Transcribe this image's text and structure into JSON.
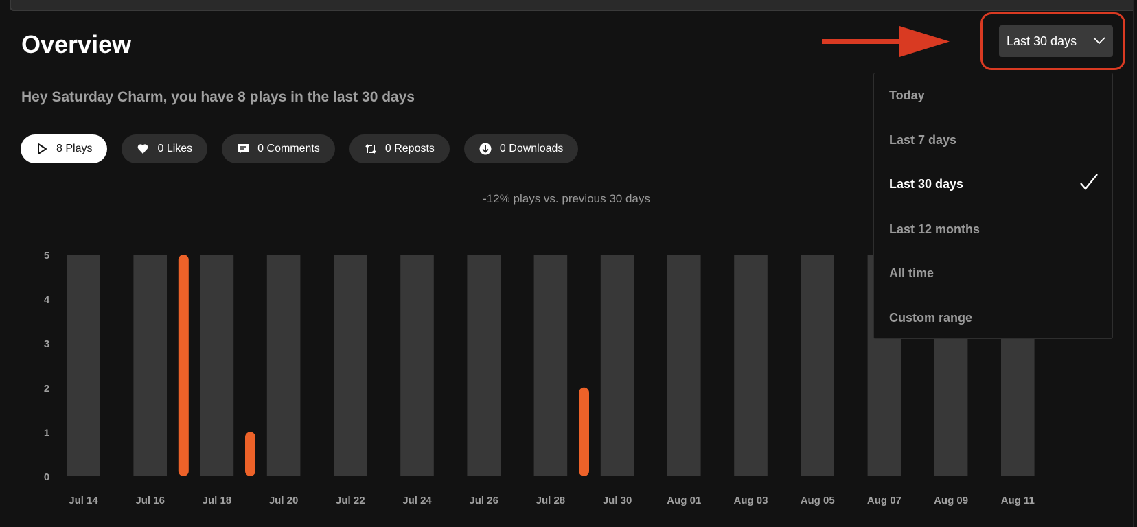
{
  "header": {
    "title": "Overview",
    "greeting": "Hey Saturday Charm, you have 8 plays in the last 30 days"
  },
  "stats": [
    {
      "icon": "play-icon",
      "label": "8 Plays",
      "active": true
    },
    {
      "icon": "heart-icon",
      "label": "0 Likes"
    },
    {
      "icon": "comment-icon",
      "label": "0 Comments"
    },
    {
      "icon": "repost-icon",
      "label": "0 Reposts"
    },
    {
      "icon": "download-icon",
      "label": "0 Downloads"
    }
  ],
  "comparison": "-12% plays vs. previous 30 days",
  "range_dropdown": {
    "selected": "Last 30 days",
    "options": [
      "Today",
      "Last 7 days",
      "Last 30 days",
      "Last 12 months",
      "All time",
      "Custom range"
    ],
    "selected_index": 2
  },
  "colors": {
    "accent": "#ed6229",
    "annotation": "#d93a22",
    "bar_bg": "#383838"
  },
  "chart_data": {
    "type": "bar",
    "categories": [
      "Jul 14",
      "Jul 15",
      "Jul 16",
      "Jul 17",
      "Jul 18",
      "Jul 19",
      "Jul 20",
      "Jul 21",
      "Jul 22",
      "Jul 23",
      "Jul 24",
      "Jul 25",
      "Jul 26",
      "Jul 27",
      "Jul 28",
      "Jul 29",
      "Jul 30",
      "Jul 31",
      "Aug 01",
      "Aug 02",
      "Aug 03",
      "Aug 04",
      "Aug 05",
      "Aug 06",
      "Aug 07",
      "Aug 08",
      "Aug 09",
      "Aug 10",
      "Aug 11"
    ],
    "values": [
      0,
      0,
      0,
      5,
      0,
      1,
      0,
      0,
      0,
      0,
      0,
      0,
      0,
      0,
      0,
      2,
      0,
      0,
      0,
      0,
      0,
      0,
      0,
      0,
      0,
      0,
      0,
      0,
      0
    ],
    "tick_labels": [
      "Jul 14",
      "Jul 16",
      "Jul 18",
      "Jul 20",
      "Jul 22",
      "Jul 24",
      "Jul 26",
      "Jul 28",
      "Jul 30",
      "Aug 01",
      "Aug 03",
      "Aug 05",
      "Aug 07",
      "Aug 09",
      "Aug 11"
    ],
    "yticks": [
      0,
      1,
      2,
      3,
      4,
      5
    ],
    "ylim": [
      0,
      5
    ]
  }
}
